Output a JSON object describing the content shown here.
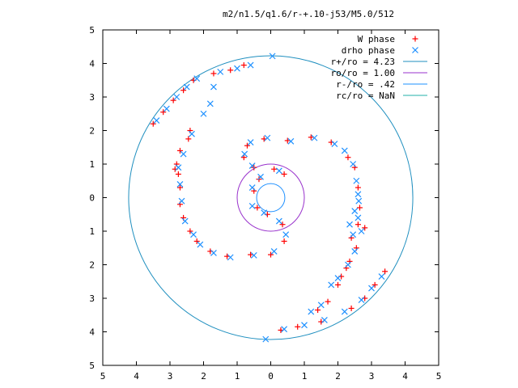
{
  "chart_data": {
    "type": "scatter",
    "title": "m2/n1.5/q1.6/r-+.10-j53/M5.0/512",
    "xlabel": "",
    "ylabel": "",
    "xlim": [
      -5,
      5
    ],
    "ylim": [
      -5,
      5
    ],
    "x_tick_labels": [
      "5",
      "4",
      "3",
      "2",
      "1",
      "0",
      "1",
      "2",
      "3",
      "4",
      "5"
    ],
    "y_tick_labels": [
      "5",
      "4",
      "3",
      "2",
      "1",
      "0",
      "1",
      "2",
      "3",
      "4",
      "5"
    ],
    "x_tick_values": [
      -5,
      -4,
      -3,
      -2,
      -1,
      0,
      1,
      2,
      3,
      4,
      5
    ],
    "y_tick_values": [
      5,
      4,
      3,
      2,
      1,
      0,
      -1,
      -2,
      -3,
      -4,
      -5
    ],
    "grid": false,
    "legend_position": "top-right",
    "series": [
      {
        "name": "W phase",
        "marker": "plus",
        "color": "#ff0000",
        "points": [
          [
            -3.5,
            2.2
          ],
          [
            -3.2,
            2.55
          ],
          [
            -2.9,
            2.9
          ],
          [
            -2.6,
            3.2
          ],
          [
            -2.3,
            3.5
          ],
          [
            -1.7,
            3.7
          ],
          [
            -1.2,
            3.8
          ],
          [
            -0.8,
            3.95
          ],
          [
            -2.4,
            2.0
          ],
          [
            -2.45,
            1.75
          ],
          [
            -2.7,
            1.4
          ],
          [
            -2.8,
            1.0
          ],
          [
            -2.85,
            0.85
          ],
          [
            -2.75,
            0.7
          ],
          [
            -2.7,
            0.3
          ],
          [
            -2.7,
            -0.2
          ],
          [
            -2.6,
            -0.6
          ],
          [
            -2.4,
            -1.0
          ],
          [
            -2.2,
            -1.3
          ],
          [
            -1.8,
            -1.6
          ],
          [
            -1.3,
            -1.75
          ],
          [
            -0.6,
            -1.7
          ],
          [
            0.0,
            -1.7
          ],
          [
            0.4,
            -1.3
          ],
          [
            0.35,
            -0.8
          ],
          [
            -0.1,
            -0.5
          ],
          [
            -0.4,
            -0.3
          ],
          [
            -0.5,
            0.2
          ],
          [
            -0.35,
            0.55
          ],
          [
            0.1,
            0.85
          ],
          [
            0.4,
            0.7
          ],
          [
            -0.5,
            0.9
          ],
          [
            -0.8,
            1.2
          ],
          [
            -0.7,
            1.55
          ],
          [
            -0.2,
            1.75
          ],
          [
            0.5,
            1.7
          ],
          [
            1.2,
            1.8
          ],
          [
            1.8,
            1.65
          ],
          [
            2.3,
            1.2
          ],
          [
            2.5,
            0.9
          ],
          [
            2.6,
            0.3
          ],
          [
            2.65,
            -0.3
          ],
          [
            2.6,
            -0.8
          ],
          [
            2.4,
            -1.2
          ],
          [
            2.8,
            -0.9
          ],
          [
            2.55,
            -1.5
          ],
          [
            2.35,
            -1.9
          ],
          [
            2.25,
            -2.1
          ],
          [
            2.1,
            -2.35
          ],
          [
            3.4,
            -2.2
          ],
          [
            3.1,
            -2.6
          ],
          [
            2.8,
            -3.0
          ],
          [
            2.4,
            -3.3
          ],
          [
            1.5,
            -3.7
          ],
          [
            0.8,
            -3.85
          ],
          [
            0.3,
            -3.95
          ],
          [
            1.4,
            -3.35
          ],
          [
            1.7,
            -3.1
          ],
          [
            2.0,
            -2.6
          ]
        ]
      },
      {
        "name": "drho phase",
        "marker": "cross",
        "color": "#1e90ff",
        "points": [
          [
            -3.4,
            2.3
          ],
          [
            -3.1,
            2.65
          ],
          [
            -2.8,
            3.0
          ],
          [
            -2.5,
            3.3
          ],
          [
            -2.2,
            3.55
          ],
          [
            -1.5,
            3.75
          ],
          [
            -1.0,
            3.85
          ],
          [
            -0.6,
            3.95
          ],
          [
            -1.7,
            3.3
          ],
          [
            -1.8,
            2.8
          ],
          [
            -2.0,
            2.5
          ],
          [
            -2.35,
            1.9
          ],
          [
            -2.6,
            1.3
          ],
          [
            -2.75,
            0.9
          ],
          [
            -2.7,
            0.4
          ],
          [
            -2.65,
            -0.1
          ],
          [
            -2.55,
            -0.7
          ],
          [
            -2.3,
            -1.1
          ],
          [
            -2.1,
            -1.4
          ],
          [
            -1.7,
            -1.65
          ],
          [
            -1.2,
            -1.78
          ],
          [
            -0.5,
            -1.72
          ],
          [
            0.1,
            -1.6
          ],
          [
            0.45,
            -1.1
          ],
          [
            0.25,
            -0.7
          ],
          [
            -0.2,
            -0.45
          ],
          [
            -0.55,
            -0.25
          ],
          [
            -0.55,
            0.3
          ],
          [
            -0.3,
            0.62
          ],
          [
            0.25,
            0.8
          ],
          [
            -0.55,
            0.95
          ],
          [
            -0.78,
            1.3
          ],
          [
            -0.6,
            1.65
          ],
          [
            -0.1,
            1.78
          ],
          [
            0.6,
            1.68
          ],
          [
            1.3,
            1.78
          ],
          [
            1.9,
            1.6
          ],
          [
            2.2,
            1.4
          ],
          [
            2.45,
            1.0
          ],
          [
            2.55,
            0.5
          ],
          [
            2.62,
            -0.1
          ],
          [
            2.6,
            -0.6
          ],
          [
            2.45,
            -1.1
          ],
          [
            2.7,
            -1.0
          ],
          [
            2.5,
            -1.6
          ],
          [
            2.3,
            -2.0
          ],
          [
            2.0,
            -2.4
          ],
          [
            1.8,
            -2.6
          ],
          [
            3.3,
            -2.35
          ],
          [
            3.0,
            -2.7
          ],
          [
            2.7,
            -3.05
          ],
          [
            2.2,
            -3.4
          ],
          [
            1.6,
            -3.65
          ],
          [
            1.0,
            -3.8
          ],
          [
            0.4,
            -3.92
          ],
          [
            -0.15,
            -4.22
          ],
          [
            0.05,
            4.22
          ],
          [
            1.2,
            -3.4
          ],
          [
            1.5,
            -3.2
          ],
          [
            2.35,
            -0.8
          ],
          [
            2.5,
            -0.4
          ],
          [
            2.6,
            0.1
          ]
        ]
      }
    ],
    "reference_circles": [
      {
        "name": "r+/ro = 4.23",
        "radius": 4.23,
        "color": "#1f8fbf"
      },
      {
        "name": "ro/ro = 1.00",
        "radius": 1.0,
        "color": "#9932cc"
      },
      {
        "name": "r-/ro = .42",
        "radius": 0.42,
        "color": "#1e90ff"
      },
      {
        "name": "rc/ro = NaN",
        "radius": null,
        "color": "#20b2aa"
      }
    ]
  }
}
